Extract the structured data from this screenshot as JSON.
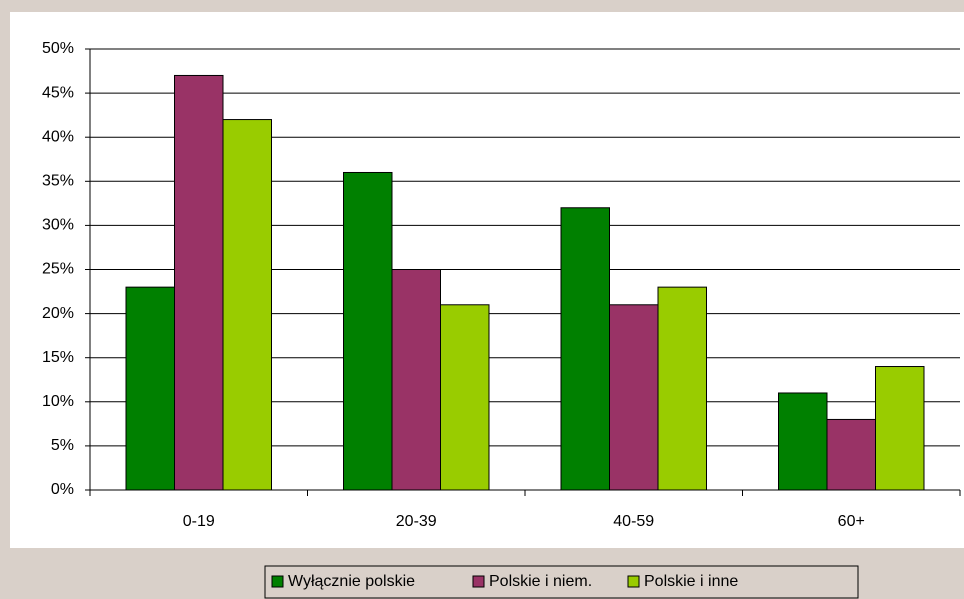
{
  "chart_data": {
    "type": "bar",
    "categories": [
      "0-19",
      "20-39",
      "40-59",
      "60+"
    ],
    "series": [
      {
        "name": "Wyłącznie polskie",
        "color": "#008000",
        "values": [
          23,
          36,
          32,
          11
        ]
      },
      {
        "name": "Polskie i niem.",
        "color": "#993366",
        "values": [
          47,
          25,
          21,
          8
        ]
      },
      {
        "name": "Polskie i inne",
        "color": "#99cc00",
        "values": [
          42,
          21,
          23,
          14
        ]
      }
    ],
    "ylim": [
      0,
      50
    ],
    "yticks": [
      {
        "value": 0,
        "label": "0%"
      },
      {
        "value": 5,
        "label": "5%"
      },
      {
        "value": 10,
        "label": "10%"
      },
      {
        "value": 15,
        "label": "15%"
      },
      {
        "value": 20,
        "label": "20%"
      },
      {
        "value": 25,
        "label": "25%"
      },
      {
        "value": 30,
        "label": "30%"
      },
      {
        "value": 35,
        "label": "35%"
      },
      {
        "value": 40,
        "label": "40%"
      },
      {
        "value": 45,
        "label": "45%"
      },
      {
        "value": 50,
        "label": "50%"
      }
    ],
    "grid": true,
    "legend": "bottom"
  }
}
